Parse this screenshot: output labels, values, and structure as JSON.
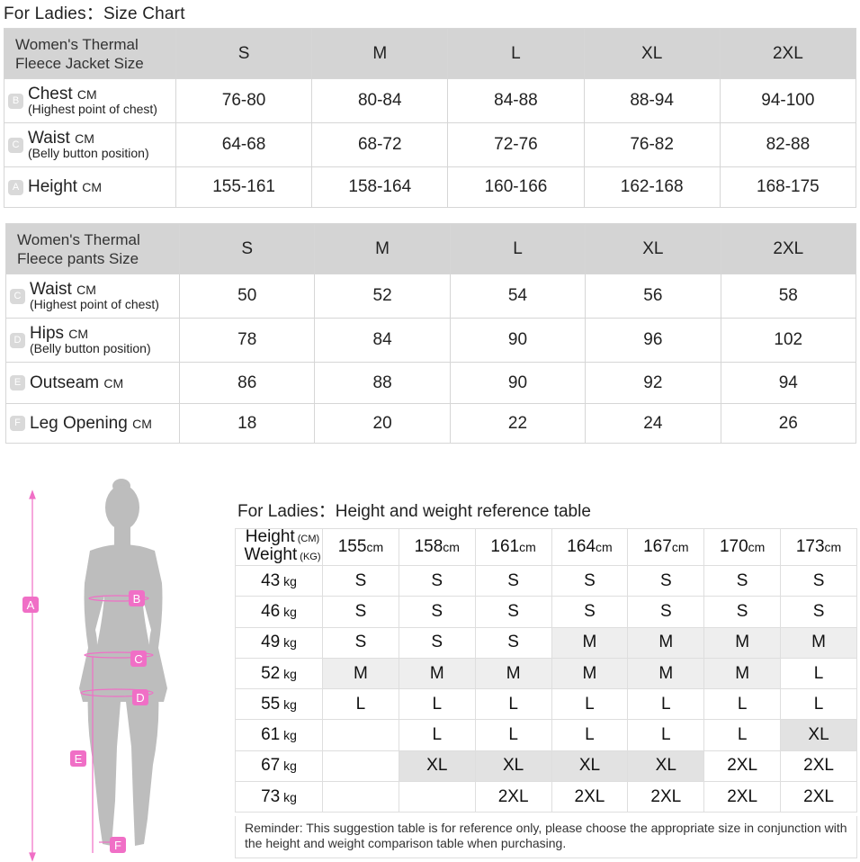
{
  "title": "For Ladies：Size Chart",
  "jacket": {
    "header": "Women's Thermal Fleece Jacket Size",
    "header_line1": "Women's Thermal",
    "header_line2": "Fleece Jacket Size",
    "sizes": [
      "S",
      "M",
      "L",
      "XL",
      "2XL"
    ],
    "rows": [
      {
        "badge": "B",
        "label": "Chest",
        "unit": "CM",
        "sub": "(Highest point of chest)",
        "values": [
          "76-80",
          "80-84",
          "84-88",
          "88-94",
          "94-100"
        ]
      },
      {
        "badge": "C",
        "label": "Waist",
        "unit": "CM",
        "sub": "(Belly button position)",
        "values": [
          "64-68",
          "68-72",
          "72-76",
          "76-82",
          "82-88"
        ]
      },
      {
        "badge": "A",
        "label": "Height",
        "unit": "CM",
        "sub": "",
        "values": [
          "155-161",
          "158-164",
          "160-166",
          "162-168",
          "168-175"
        ]
      }
    ]
  },
  "pants": {
    "header_line1": "Women's Thermal",
    "header_line2": "Fleece pants Size",
    "sizes": [
      "S",
      "M",
      "L",
      "XL",
      "2XL"
    ],
    "rows": [
      {
        "badge": "C",
        "label": "Waist",
        "unit": "CM",
        "sub": "(Highest point of chest)",
        "values": [
          "50",
          "52",
          "54",
          "56",
          "58"
        ]
      },
      {
        "badge": "D",
        "label": "Hips",
        "unit": "CM",
        "sub": "(Belly button position)",
        "values": [
          "78",
          "84",
          "90",
          "96",
          "102"
        ]
      },
      {
        "badge": "E",
        "label": "Outseam",
        "unit": "CM",
        "sub": "",
        "values": [
          "86",
          "88",
          "90",
          "92",
          "94"
        ]
      },
      {
        "badge": "F",
        "label": "Leg Opening",
        "unit": "CM",
        "sub": "",
        "values": [
          "18",
          "20",
          "22",
          "24",
          "26"
        ]
      }
    ]
  },
  "figure": {
    "markers": [
      "A",
      "B",
      "C",
      "D",
      "E",
      "F"
    ],
    "accent_color": "#f06fc6"
  },
  "hw": {
    "title": "For Ladies：Height and weight reference table",
    "height_label": "Height",
    "height_unit": "(CM)",
    "weight_label": "Weight",
    "weight_unit": "(KG)",
    "heights": [
      "155",
      "158",
      "161",
      "164",
      "167",
      "170",
      "173"
    ],
    "height_unit_short": "cm",
    "weight_unit_short": "kg",
    "rows": [
      {
        "weight": "43",
        "values": [
          "S",
          "S",
          "S",
          "S",
          "S",
          "S",
          "S"
        ],
        "shade": [
          0,
          0,
          0,
          0,
          0,
          0,
          0
        ]
      },
      {
        "weight": "46",
        "values": [
          "S",
          "S",
          "S",
          "S",
          "S",
          "S",
          "S"
        ],
        "shade": [
          0,
          0,
          0,
          0,
          0,
          0,
          0
        ]
      },
      {
        "weight": "49",
        "values": [
          "S",
          "S",
          "S",
          "M",
          "M",
          "M",
          "M"
        ],
        "shade": [
          0,
          0,
          0,
          1,
          1,
          1,
          1
        ]
      },
      {
        "weight": "52",
        "values": [
          "M",
          "M",
          "M",
          "M",
          "M",
          "M",
          "L"
        ],
        "shade": [
          1,
          1,
          1,
          1,
          1,
          1,
          0
        ]
      },
      {
        "weight": "55",
        "values": [
          "L",
          "L",
          "L",
          "L",
          "L",
          "L",
          "L"
        ],
        "shade": [
          0,
          0,
          0,
          0,
          0,
          0,
          0
        ]
      },
      {
        "weight": "61",
        "values": [
          "",
          "L",
          "L",
          "L",
          "L",
          "L",
          "XL"
        ],
        "shade": [
          0,
          0,
          0,
          0,
          0,
          0,
          2
        ]
      },
      {
        "weight": "67",
        "values": [
          "",
          "XL",
          "XL",
          "XL",
          "XL",
          "2XL",
          "2XL"
        ],
        "shade": [
          0,
          2,
          2,
          2,
          2,
          0,
          0
        ]
      },
      {
        "weight": "73",
        "values": [
          "",
          "",
          "2XL",
          "2XL",
          "2XL",
          "2XL",
          "2XL"
        ],
        "shade": [
          0,
          0,
          0,
          0,
          0,
          0,
          0
        ]
      }
    ],
    "reminder": "Reminder: This suggestion table is for reference only, please choose the appropriate size in conjunction with the height and weight comparison table when purchasing."
  }
}
